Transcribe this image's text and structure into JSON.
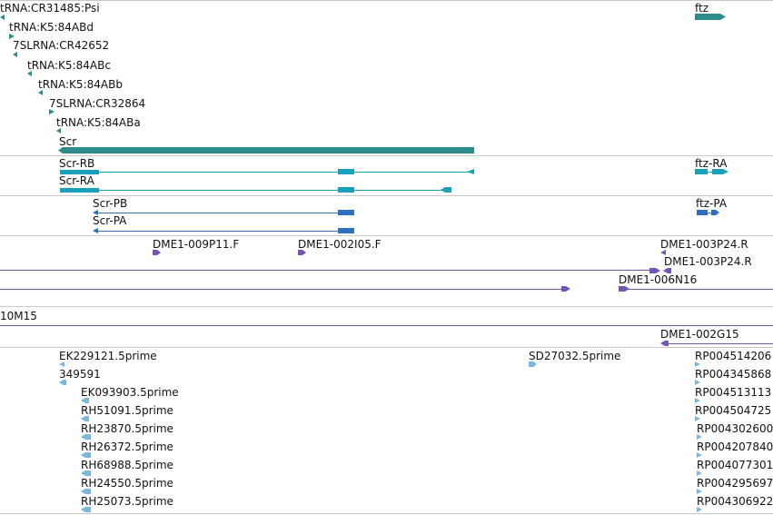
{
  "colors": {
    "gene_teal": "#2e8b8b",
    "transcript_teal": "#1aa0b8",
    "protein_blue": "#2f6fc0",
    "clone_purple": "#7355b8",
    "est_lightblue": "#7ab6de",
    "separator": "#c8c8c8"
  },
  "tracks": {
    "genes": {
      "items": [
        {
          "label": "tRNA:CR31485:Psi",
          "glyph": "left-arrow-icon"
        },
        {
          "label": "tRNA:K5:84ABd",
          "glyph": "right-arrow-icon"
        },
        {
          "label": "7SLRNA:CR42652",
          "glyph": "left-arrow-icon"
        },
        {
          "label": "tRNA:K5:84ABc",
          "glyph": "left-arrow-icon"
        },
        {
          "label": "tRNA:K5:84ABb",
          "glyph": "left-arrow-icon"
        },
        {
          "label": "7SLRNA:CR32864",
          "glyph": "right-arrow-icon"
        },
        {
          "label": "tRNA:K5:84ABa",
          "glyph": "left-arrow-icon"
        },
        {
          "label": "Scr",
          "glyph": "left-arrow-icon"
        },
        {
          "label": "ftz",
          "glyph": "right-arrow-icon"
        }
      ]
    },
    "transcripts": {
      "items": [
        {
          "label": "Scr-RB",
          "strand": "minus"
        },
        {
          "label": "Scr-RA",
          "strand": "minus"
        },
        {
          "label": "ftz-RA",
          "strand": "plus"
        }
      ]
    },
    "proteins": {
      "items": [
        {
          "label": "Scr-PB",
          "strand": "minus"
        },
        {
          "label": "Scr-PA",
          "strand": "minus"
        },
        {
          "label": "ftz-PA",
          "strand": "plus"
        }
      ]
    },
    "clones": {
      "items": [
        {
          "label": "DME1-009P11.F"
        },
        {
          "label": "DME1-002I05.F"
        },
        {
          "label": "DME1-003P24.R"
        },
        {
          "label": "DME1-003P24.R"
        },
        {
          "label": "DME1-006N16"
        }
      ]
    },
    "bac_left": {
      "label": "10M15"
    },
    "bac_right": {
      "label": "DME1-002G15"
    },
    "ests": {
      "items": [
        {
          "label": "EK229121.5prime"
        },
        {
          "label": "349591"
        },
        {
          "label": "EK093903.5prime"
        },
        {
          "label": "RH51091.5prime"
        },
        {
          "label": "RH23870.5prime"
        },
        {
          "label": "RH26372.5prime"
        },
        {
          "label": "RH68988.5prime"
        },
        {
          "label": "RH24550.5prime"
        },
        {
          "label": "RH25073.5prime"
        },
        {
          "label": "SD27032.5prime"
        },
        {
          "label": "RP004514206"
        },
        {
          "label": "RP004345868"
        },
        {
          "label": "RP004513113"
        },
        {
          "label": "RP004504725"
        },
        {
          "label": "RP004302600"
        },
        {
          "label": "RP004207840"
        },
        {
          "label": "RP004077301"
        },
        {
          "label": "RP004295697"
        },
        {
          "label": "RP004306922"
        }
      ]
    }
  }
}
